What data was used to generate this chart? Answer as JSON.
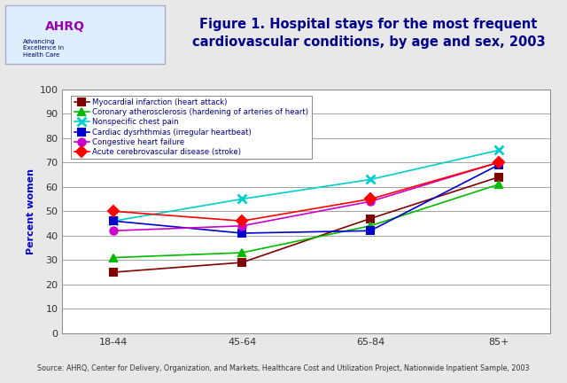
{
  "title": "Figure 1. Hospital stays for the most frequent\ncardiovascular conditions, by age and sex, 2003",
  "ylabel": "Percent women",
  "x_tick_labels": [
    "18-44",
    "45-64",
    "65-84",
    "85+"
  ],
  "ylim": [
    0,
    100
  ],
  "yticks": [
    0,
    10,
    20,
    30,
    40,
    50,
    60,
    70,
    80,
    90,
    100
  ],
  "series": [
    {
      "label": "Myocardial infarction (heart attack)",
      "color": "#800000",
      "marker": "s",
      "values": [
        25,
        29,
        47,
        64
      ]
    },
    {
      "label": "Coronary atherosclerosis (hardening of arteries of heart)",
      "color": "#00bb00",
      "marker": "^",
      "values": [
        31,
        33,
        44,
        61
      ]
    },
    {
      "label": "Nonspecific chest pain",
      "color": "#00cccc",
      "marker": "x",
      "values": [
        46,
        55,
        63,
        75
      ]
    },
    {
      "label": "Cardiac dysrhthmias (irregular heartbeat)",
      "color": "#0000cc",
      "marker": "s",
      "values": [
        46,
        41,
        42,
        69
      ]
    },
    {
      "label": "Congestive heart failure",
      "color": "#cc00cc",
      "marker": "o",
      "values": [
        42,
        44,
        54,
        70
      ]
    },
    {
      "label": "Acute cerebrovascular disease (stroke)",
      "color": "#ff0000",
      "marker": "D",
      "values": [
        50,
        46,
        55,
        70
      ]
    }
  ],
  "source_text": "Source: AHRQ, Center for Delivery, Organization, and Markets, Healthcare Cost and Utilization Project, Nationwide Inpatient Sample, 2003",
  "fig_bg_color": "#e8e8e8",
  "header_bg_color": "#ffffff",
  "plot_bg_color": "#ffffff",
  "body_bg_color": "#f5f5f5",
  "title_color": "#00008B",
  "legend_text_color": "#00008B",
  "axis_label_color": "#0000cc",
  "grid_color": "#808080",
  "separator_color": "#00008B",
  "logo_box_color": "#ddeeff",
  "source_color": "#333333"
}
